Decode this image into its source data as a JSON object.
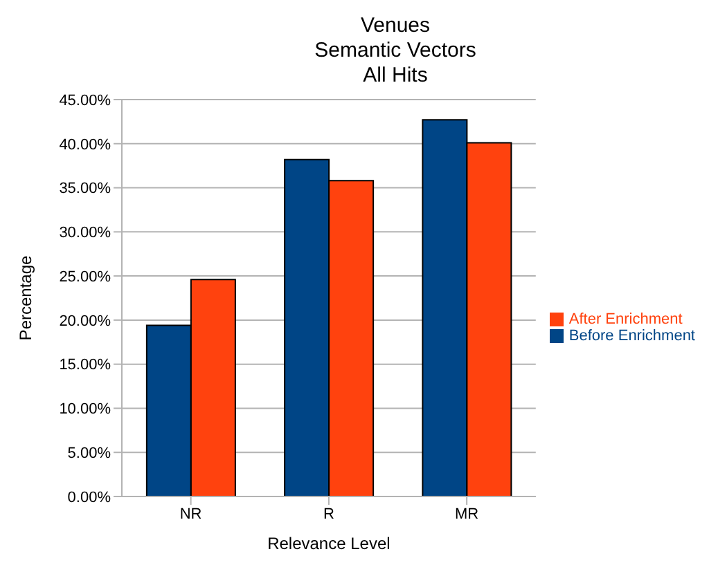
{
  "chart_data": {
    "type": "bar",
    "title": "Venues\nSemantic Vectors\nAll Hits",
    "xlabel": "Relevance Level",
    "ylabel": "Percentage",
    "categories": [
      "NR",
      "R",
      "MR"
    ],
    "series": [
      {
        "name": "Before Enrichment",
        "color": "#004586",
        "values": [
          19.4,
          38.2,
          42.7
        ]
      },
      {
        "name": "After Enrichment",
        "color": "#ff420e",
        "values": [
          24.6,
          35.8,
          40.1
        ]
      }
    ],
    "ylim": [
      0,
      45
    ],
    "yticks": [
      {
        "value": 0,
        "label": "0.00%"
      },
      {
        "value": 5,
        "label": "5.00%"
      },
      {
        "value": 10,
        "label": "10.00%"
      },
      {
        "value": 15,
        "label": "15.00%"
      },
      {
        "value": 20,
        "label": "20.00%"
      },
      {
        "value": 25,
        "label": "25.00%"
      },
      {
        "value": 30,
        "label": "30.00%"
      },
      {
        "value": 35,
        "label": "35.00%"
      },
      {
        "value": 40,
        "label": "40.00%"
      },
      {
        "value": 45,
        "label": "45.00%"
      }
    ],
    "grid": "y",
    "legend": "right"
  }
}
